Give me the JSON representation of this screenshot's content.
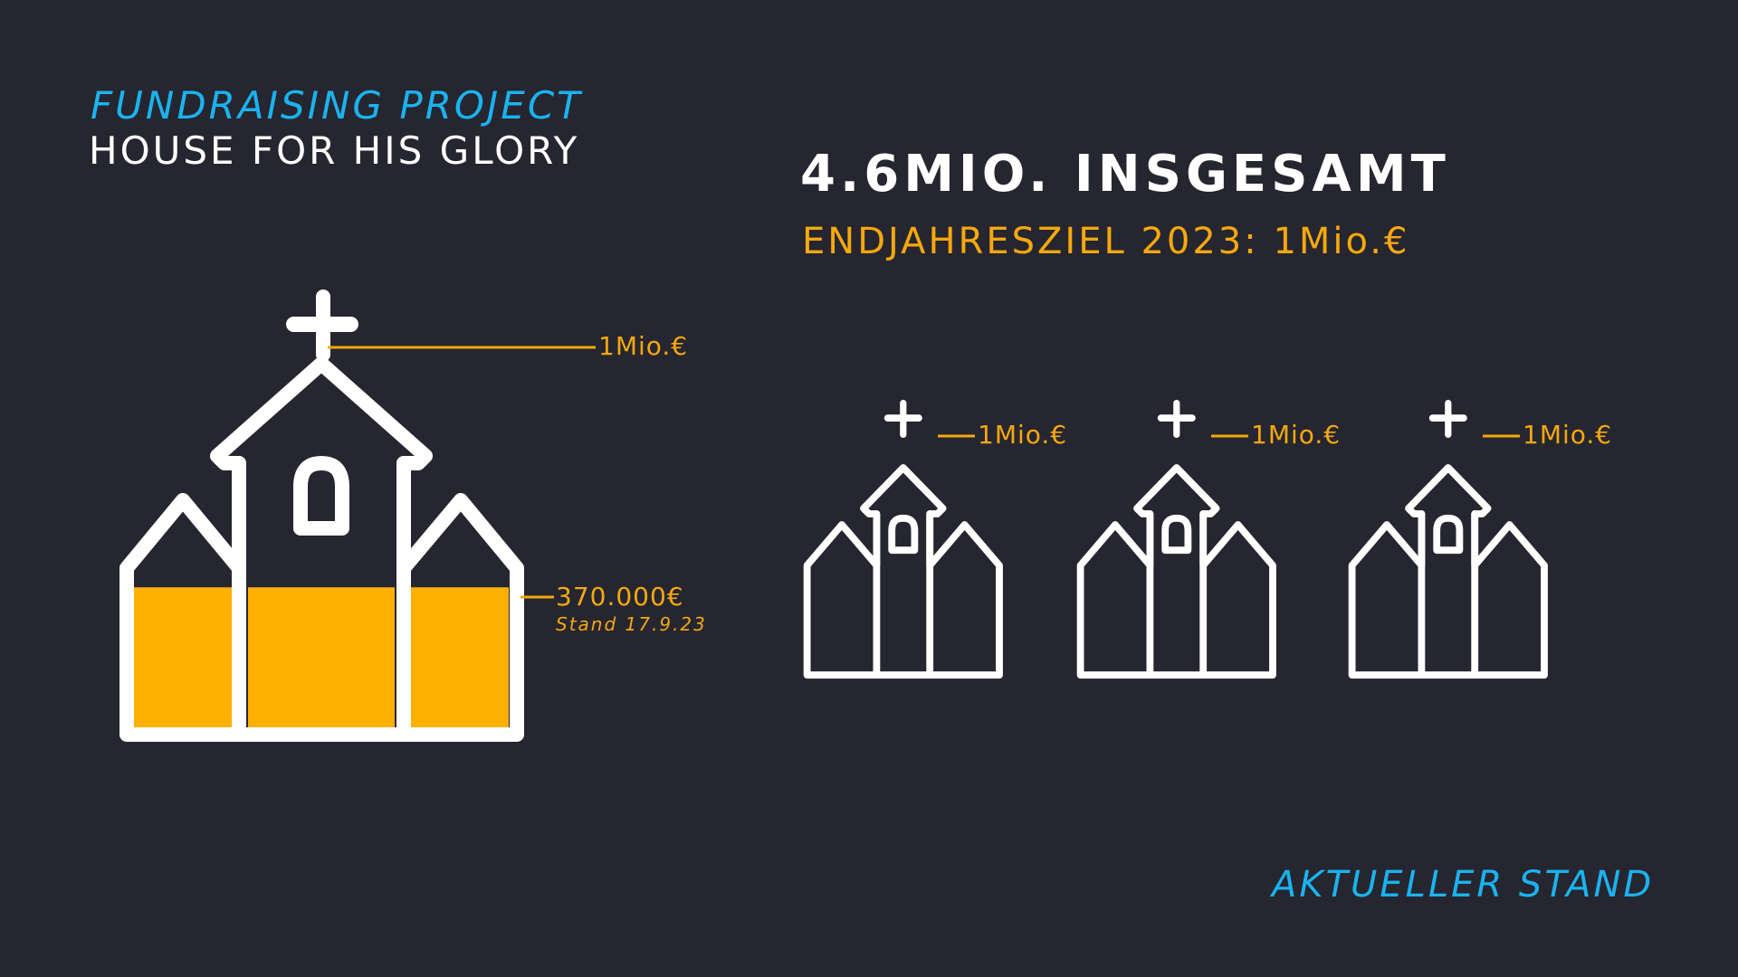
{
  "header": {
    "subtitle": "FUNDRAISING PROJECT",
    "title": "HOUSE FOR HIS GLORY"
  },
  "summary": {
    "total": "4.6MIO. INSGESAMT",
    "goal": "ENDJAHRESZIEL 2023: 1Mio.€"
  },
  "main_church": {
    "top_label": "1Mio.€",
    "current_label": "370.000€",
    "date_label": "Stand 17.9.23",
    "fill_fraction": 0.37
  },
  "small_churches": [
    {
      "label": "1Mio.€"
    },
    {
      "label": "1Mio.€"
    },
    {
      "label": "1Mio.€"
    }
  ],
  "footer": {
    "label": "AKTUELLER STAND"
  },
  "colors": {
    "background": "#262630",
    "accent_blue": "#1ab3f0",
    "accent_orange": "#f6a80d",
    "fill_yellow": "#ffb000",
    "white": "#ffffff"
  }
}
